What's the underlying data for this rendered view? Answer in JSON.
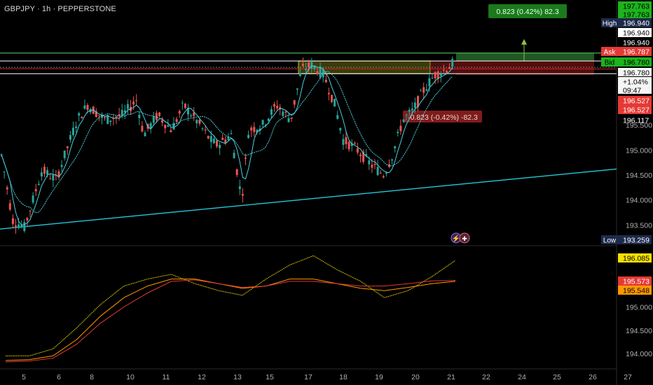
{
  "header": {
    "symbol_line": "GBPJPY · 1h · PEPPERSTONE"
  },
  "colors": {
    "background": "#000000",
    "candle_up": "#26a69a",
    "candle_down": "#ef5350",
    "ma_cyan": "#4dd0e1",
    "trendline": "#26c6da",
    "ind_yellow": "#f5e000",
    "ind_orange": "#ff9800",
    "ind_red": "#e53935",
    "high_line": "#4caf50",
    "profit_zone": "#2e7d32",
    "loss_zone": "#b71c1c",
    "entry_zone": "#827717"
  },
  "chart_data": [
    {
      "type": "candlestick",
      "symbol": "GBPJPY",
      "timeframe": "1h",
      "broker": "PEPPERSTONE",
      "x_tick_labels": [
        "5",
        "6",
        "8",
        "10",
        "11",
        "12",
        "13",
        "15",
        "17",
        "18",
        "19",
        "20",
        "21",
        "22",
        "24",
        "25",
        "26",
        "27"
      ],
      "y_tick_labels": [
        "195.500",
        "195.000",
        "194.500",
        "194.000",
        "193.500"
      ],
      "ylim": [
        193.1,
        198.0
      ],
      "price_labels": [
        {
          "label": "",
          "value": "197.763"
        },
        {
          "label": "",
          "value": "197.763"
        },
        {
          "label": "High",
          "value": "196.940"
        },
        {
          "label": "",
          "value": "196.940"
        },
        {
          "label": "",
          "value": "196.940"
        },
        {
          "label": "Ask",
          "value": "196.787"
        },
        {
          "label": "Bid",
          "value": "196.780"
        },
        {
          "label": "",
          "value": "196.780"
        },
        {
          "label": "",
          "value": "+1.04%"
        },
        {
          "label": "",
          "value": "09:47"
        },
        {
          "label": "",
          "value": "196.527"
        },
        {
          "label": "",
          "value": "196.527"
        },
        {
          "label": "",
          "value": "196.117"
        },
        {
          "label": "Low",
          "value": "193.259"
        }
      ],
      "levels": {
        "high": 196.94,
        "ask": 196.787,
        "bid": 196.78,
        "zone_bottom": 196.527,
        "target": 197.763,
        "low": 193.259
      },
      "position": {
        "profit_label": "0.823 (0.42%) 82.3",
        "loss_label": "-0.823 (-0.42%) -82.3"
      },
      "trendline": {
        "from": {
          "x": "5",
          "y": 193.4
        },
        "to": {
          "x": "27",
          "y": 194.6
        }
      },
      "price_path_anchors": [
        {
          "x": 0,
          "y": 195.0
        },
        {
          "x": 0.05,
          "y": 193.75
        },
        {
          "x": 0.12,
          "y": 193.45
        },
        {
          "x": 0.2,
          "y": 194.3
        },
        {
          "x": 0.32,
          "y": 195.1
        },
        {
          "x": 0.42,
          "y": 195.2
        },
        {
          "x": 0.5,
          "y": 195.75
        },
        {
          "x": 0.62,
          "y": 195.95
        },
        {
          "x": 0.75,
          "y": 195.6
        },
        {
          "x": 0.9,
          "y": 195.9
        },
        {
          "x": 1.0,
          "y": 195.3
        }
      ],
      "series": [
        {
          "name": "",
          "color": "#4dd0e1",
          "kind": "moving-average"
        }
      ]
    },
    {
      "type": "line",
      "ylim": [
        193.7,
        196.3
      ],
      "y_tick_labels": [
        "195.000",
        "194.500",
        "194.000"
      ],
      "y_value_labels": [
        "196.085",
        "195.573",
        "195.548"
      ],
      "series": [
        {
          "name": "",
          "color": "#f5e000",
          "values": [
            193.95,
            193.95,
            194.1,
            194.55,
            195.05,
            195.45,
            195.6,
            195.7,
            195.5,
            195.35,
            195.25,
            195.6,
            195.9,
            196.1,
            195.8,
            195.55,
            195.2,
            195.35,
            195.65,
            196.0
          ]
        },
        {
          "name": "",
          "color": "#ff9800",
          "values": [
            193.85,
            193.87,
            193.95,
            194.3,
            194.8,
            195.2,
            195.45,
            195.6,
            195.6,
            195.5,
            195.4,
            195.45,
            195.6,
            195.6,
            195.5,
            195.4,
            195.35,
            195.42,
            195.5,
            195.55
          ]
        },
        {
          "name": "",
          "color": "#e53935",
          "values": [
            193.82,
            193.84,
            193.9,
            194.2,
            194.65,
            195.0,
            195.3,
            195.55,
            195.58,
            195.5,
            195.42,
            195.45,
            195.55,
            195.55,
            195.5,
            195.45,
            195.45,
            195.5,
            195.56,
            195.57
          ]
        }
      ]
    }
  ]
}
